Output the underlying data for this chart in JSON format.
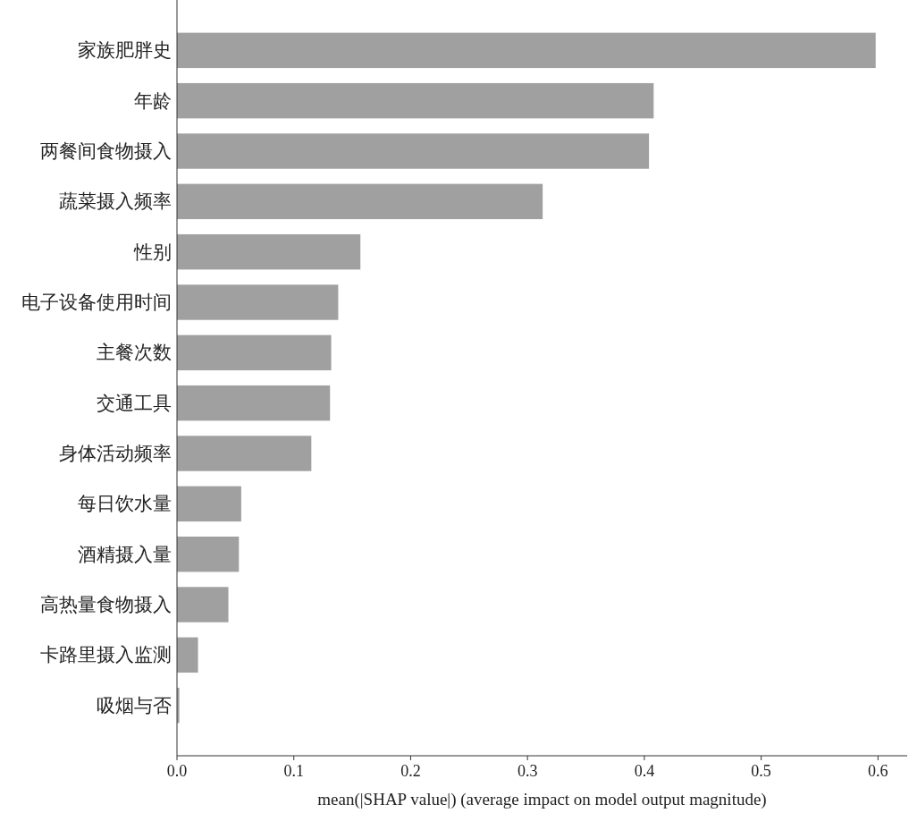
{
  "chart_data": {
    "type": "bar",
    "orientation": "horizontal",
    "xlabel": "mean(|SHAP value|) (average impact on model output magnitude)",
    "categories": [
      "家族肥胖史",
      "年龄",
      "两餐间食物摄入",
      "蔬菜摄入频率",
      "性别",
      "电子设备使用时间",
      "主餐次数",
      "交通工具",
      "身体活动频率",
      "每日饮水量",
      "酒精摄入量",
      "高热量食物摄入",
      "卡路里摄入监测",
      "吸烟与否"
    ],
    "values": [
      0.598,
      0.408,
      0.404,
      0.313,
      0.157,
      0.138,
      0.132,
      0.131,
      0.115,
      0.055,
      0.053,
      0.044,
      0.018,
      0.002
    ],
    "color": "#a0a0a0",
    "xlim": [
      0,
      0.625
    ],
    "xticks": [
      {
        "value": 0,
        "label": "0.0"
      },
      {
        "value": 0.1,
        "label": "0.1"
      },
      {
        "value": 0.2,
        "label": "0.2"
      },
      {
        "value": 0.3,
        "label": "0.3"
      },
      {
        "value": 0.4,
        "label": "0.4"
      },
      {
        "value": 0.5,
        "label": "0.5"
      },
      {
        "value": 0.6,
        "label": "0.6"
      }
    ]
  }
}
